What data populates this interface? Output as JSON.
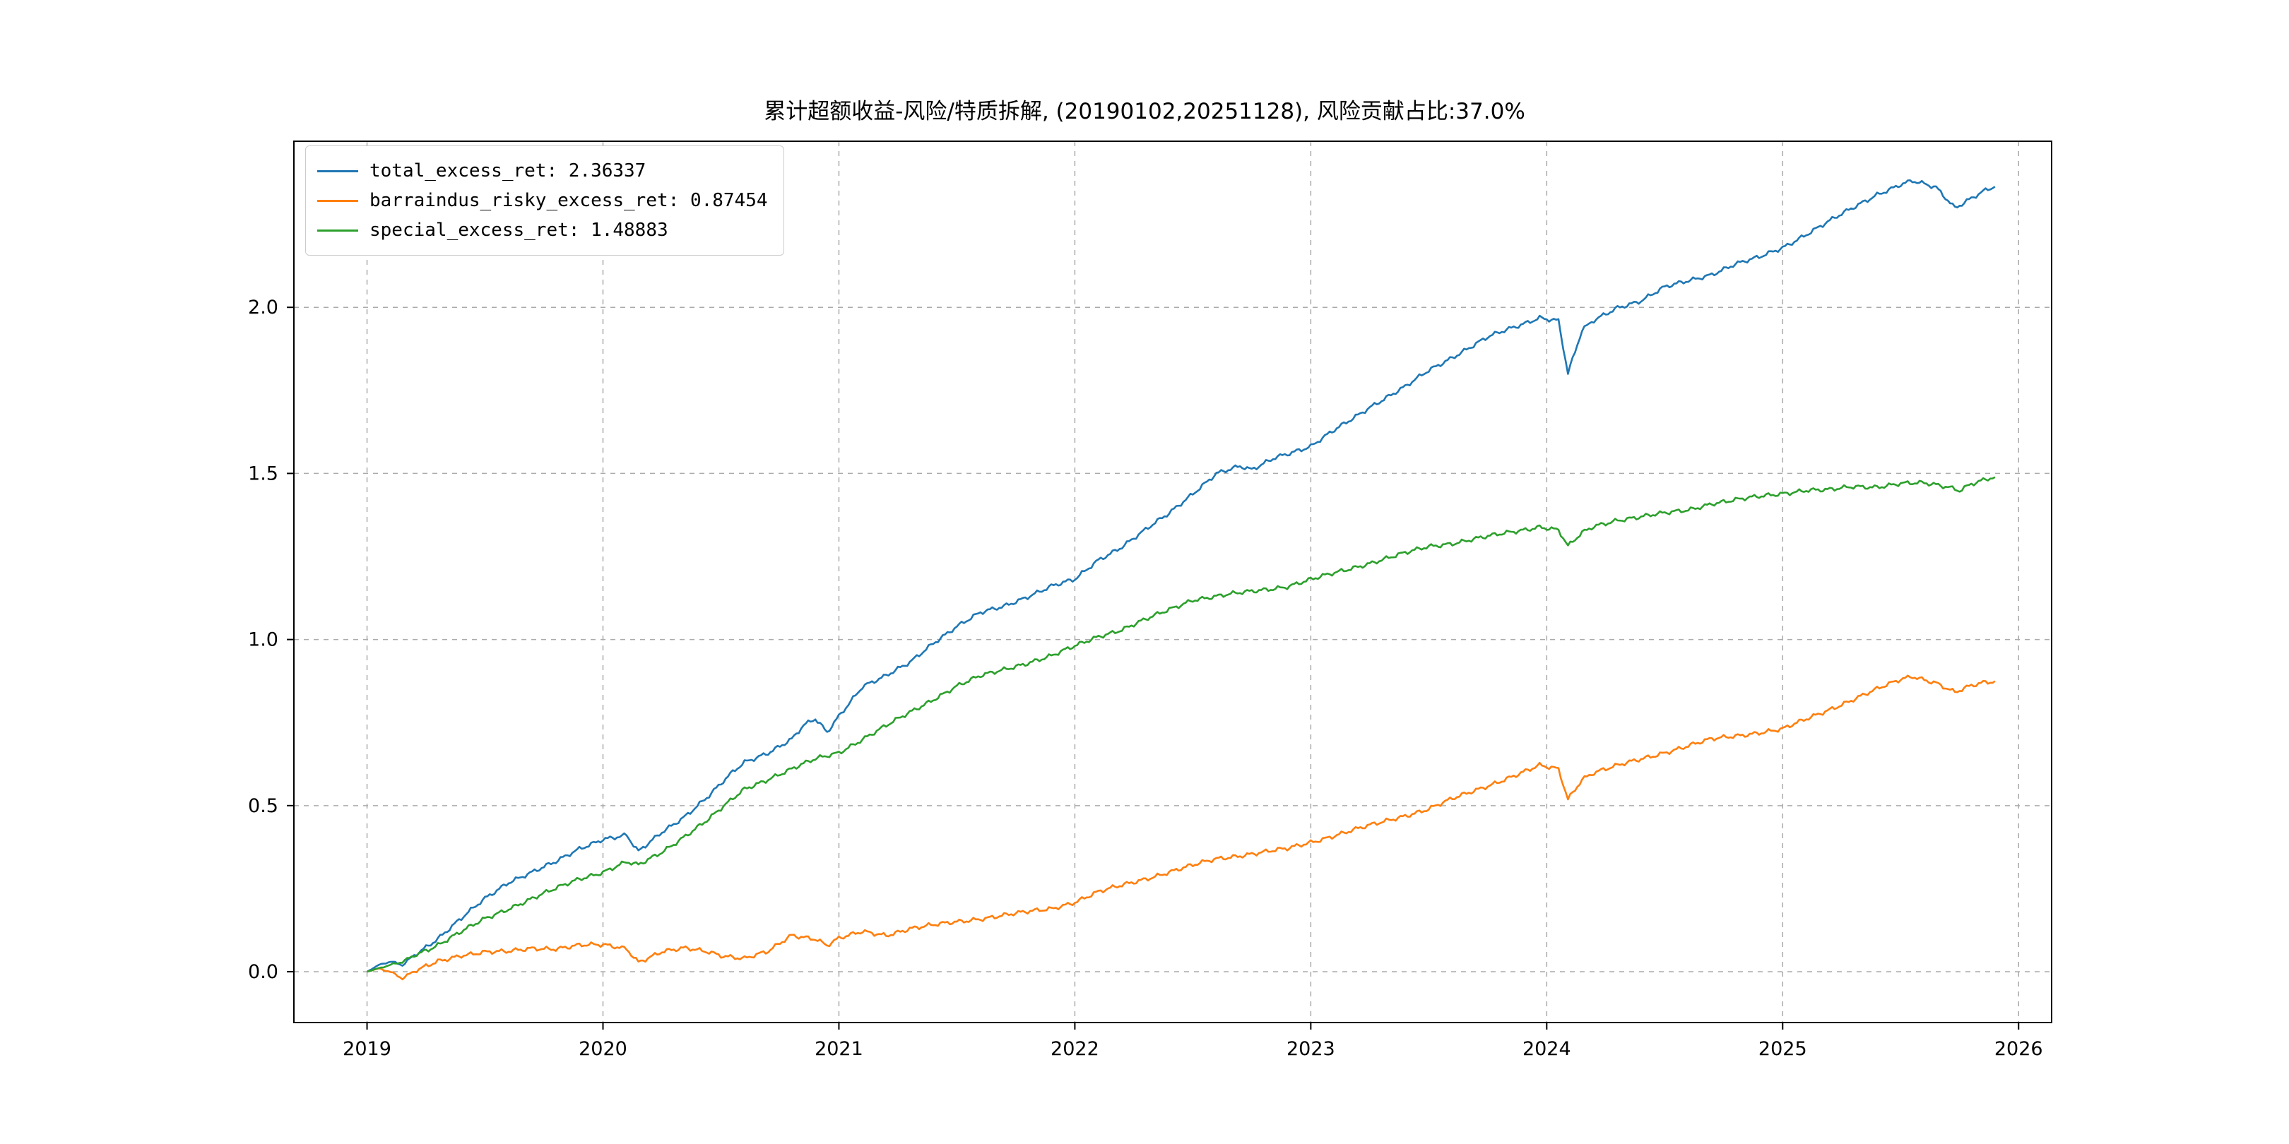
{
  "title": "累计超额收益-风险/特质拆解, (20190102,20251128), 风险贡献占比:37.0%",
  "risk_contribution_pct": "37.0%",
  "date_range": "20190102-20251128",
  "colors": {
    "total": "#1f77b4",
    "barraindus": "#ff7f0e",
    "special": "#2ca02c",
    "grid": "#ababab",
    "spine": "#000000"
  },
  "legend": {
    "items": [
      {
        "label": "total_excess_ret: 2.36337",
        "color": "#1f77b4"
      },
      {
        "label": "barraindus_risky_excess_ret: 0.87454",
        "color": "#ff7f0e"
      },
      {
        "label": "special_excess_ret: 1.48883",
        "color": "#2ca02c"
      }
    ]
  },
  "chart_data": {
    "type": "line",
    "title": "累计超额收益-风险/特质拆解, (20190102,20251128), 风险贡献占比:37.0%",
    "xlabel": "",
    "ylabel": "",
    "grid": true,
    "grid_style": "dashed",
    "legend_position": "upper-left",
    "x_ticks": [
      2019,
      2020,
      2021,
      2022,
      2023,
      2024,
      2025,
      2026
    ],
    "y_ticks": [
      0.0,
      0.5,
      1.0,
      1.5,
      2.0
    ],
    "y_tick_labels": [
      "0.0",
      "0.5",
      "1.0",
      "1.5",
      "2.0"
    ],
    "xlim": [
      2018.69,
      2026.14
    ],
    "ylim": [
      -0.153,
      2.5
    ],
    "series": [
      {
        "name": "total_excess_ret",
        "final_value": 2.36337,
        "color": "#1f77b4",
        "points": [
          [
            2019.0,
            0.0
          ],
          [
            2019.05,
            0.02
          ],
          [
            2019.1,
            0.03
          ],
          [
            2019.15,
            0.02
          ],
          [
            2019.2,
            0.05
          ],
          [
            2019.3,
            0.1
          ],
          [
            2019.4,
            0.16
          ],
          [
            2019.5,
            0.22
          ],
          [
            2019.6,
            0.27
          ],
          [
            2019.7,
            0.3
          ],
          [
            2019.8,
            0.33
          ],
          [
            2019.9,
            0.37
          ],
          [
            2020.0,
            0.4
          ],
          [
            2020.1,
            0.41
          ],
          [
            2020.15,
            0.36
          ],
          [
            2020.25,
            0.42
          ],
          [
            2020.35,
            0.47
          ],
          [
            2020.45,
            0.53
          ],
          [
            2020.55,
            0.6
          ],
          [
            2020.6,
            0.63
          ],
          [
            2020.7,
            0.66
          ],
          [
            2020.8,
            0.7
          ],
          [
            2020.85,
            0.74
          ],
          [
            2020.9,
            0.76
          ],
          [
            2020.95,
            0.72
          ],
          [
            2021.0,
            0.77
          ],
          [
            2021.1,
            0.86
          ],
          [
            2021.2,
            0.89
          ],
          [
            2021.3,
            0.93
          ],
          [
            2021.4,
            0.99
          ],
          [
            2021.5,
            1.04
          ],
          [
            2021.6,
            1.08
          ],
          [
            2021.7,
            1.1
          ],
          [
            2021.8,
            1.13
          ],
          [
            2021.9,
            1.16
          ],
          [
            2022.0,
            1.18
          ],
          [
            2022.1,
            1.24
          ],
          [
            2022.2,
            1.28
          ],
          [
            2022.3,
            1.33
          ],
          [
            2022.4,
            1.38
          ],
          [
            2022.5,
            1.44
          ],
          [
            2022.6,
            1.5
          ],
          [
            2022.7,
            1.52
          ],
          [
            2022.75,
            1.51
          ],
          [
            2022.85,
            1.55
          ],
          [
            2023.0,
            1.58
          ],
          [
            2023.1,
            1.63
          ],
          [
            2023.25,
            1.7
          ],
          [
            2023.4,
            1.76
          ],
          [
            2023.5,
            1.81
          ],
          [
            2023.6,
            1.85
          ],
          [
            2023.75,
            1.91
          ],
          [
            2023.9,
            1.95
          ],
          [
            2023.97,
            1.97
          ],
          [
            2024.05,
            1.96
          ],
          [
            2024.09,
            1.8
          ],
          [
            2024.15,
            1.93
          ],
          [
            2024.2,
            1.96
          ],
          [
            2024.3,
            2.0
          ],
          [
            2024.4,
            2.02
          ],
          [
            2024.5,
            2.06
          ],
          [
            2024.6,
            2.08
          ],
          [
            2024.7,
            2.1
          ],
          [
            2024.8,
            2.13
          ],
          [
            2024.9,
            2.15
          ],
          [
            2025.0,
            2.18
          ],
          [
            2025.1,
            2.22
          ],
          [
            2025.2,
            2.26
          ],
          [
            2025.3,
            2.3
          ],
          [
            2025.4,
            2.34
          ],
          [
            2025.5,
            2.37
          ],
          [
            2025.55,
            2.38
          ],
          [
            2025.65,
            2.36
          ],
          [
            2025.73,
            2.3
          ],
          [
            2025.8,
            2.33
          ],
          [
            2025.85,
            2.35
          ],
          [
            2025.9,
            2.36337
          ]
        ]
      },
      {
        "name": "barraindus_risky_excess_ret",
        "final_value": 0.87454,
        "color": "#ff7f0e",
        "points": [
          [
            2019.0,
            0.0
          ],
          [
            2019.05,
            0.01
          ],
          [
            2019.1,
            0.0
          ],
          [
            2019.15,
            -0.02
          ],
          [
            2019.2,
            0.0
          ],
          [
            2019.3,
            0.03
          ],
          [
            2019.4,
            0.05
          ],
          [
            2019.5,
            0.06
          ],
          [
            2019.6,
            0.06
          ],
          [
            2019.7,
            0.07
          ],
          [
            2019.8,
            0.07
          ],
          [
            2019.9,
            0.08
          ],
          [
            2020.0,
            0.08
          ],
          [
            2020.1,
            0.07
          ],
          [
            2020.15,
            0.03
          ],
          [
            2020.25,
            0.06
          ],
          [
            2020.35,
            0.07
          ],
          [
            2020.45,
            0.06
          ],
          [
            2020.5,
            0.05
          ],
          [
            2020.6,
            0.04
          ],
          [
            2020.7,
            0.06
          ],
          [
            2020.8,
            0.11
          ],
          [
            2020.9,
            0.1
          ],
          [
            2020.95,
            0.08
          ],
          [
            2021.0,
            0.1
          ],
          [
            2021.1,
            0.12
          ],
          [
            2021.2,
            0.11
          ],
          [
            2021.3,
            0.13
          ],
          [
            2021.4,
            0.14
          ],
          [
            2021.5,
            0.15
          ],
          [
            2021.6,
            0.16
          ],
          [
            2021.7,
            0.17
          ],
          [
            2021.8,
            0.18
          ],
          [
            2021.9,
            0.19
          ],
          [
            2022.0,
            0.21
          ],
          [
            2022.1,
            0.24
          ],
          [
            2022.2,
            0.26
          ],
          [
            2022.3,
            0.28
          ],
          [
            2022.4,
            0.3
          ],
          [
            2022.5,
            0.32
          ],
          [
            2022.6,
            0.34
          ],
          [
            2022.7,
            0.35
          ],
          [
            2022.8,
            0.36
          ],
          [
            2022.9,
            0.37
          ],
          [
            2023.0,
            0.39
          ],
          [
            2023.1,
            0.41
          ],
          [
            2023.25,
            0.44
          ],
          [
            2023.4,
            0.47
          ],
          [
            2023.5,
            0.49
          ],
          [
            2023.6,
            0.52
          ],
          [
            2023.75,
            0.56
          ],
          [
            2023.9,
            0.6
          ],
          [
            2023.97,
            0.62
          ],
          [
            2024.05,
            0.61
          ],
          [
            2024.09,
            0.52
          ],
          [
            2024.15,
            0.58
          ],
          [
            2024.2,
            0.6
          ],
          [
            2024.3,
            0.62
          ],
          [
            2024.4,
            0.64
          ],
          [
            2024.5,
            0.66
          ],
          [
            2024.6,
            0.68
          ],
          [
            2024.7,
            0.7
          ],
          [
            2024.8,
            0.71
          ],
          [
            2024.9,
            0.72
          ],
          [
            2025.0,
            0.73
          ],
          [
            2025.1,
            0.76
          ],
          [
            2025.2,
            0.79
          ],
          [
            2025.3,
            0.82
          ],
          [
            2025.4,
            0.85
          ],
          [
            2025.5,
            0.88
          ],
          [
            2025.55,
            0.89
          ],
          [
            2025.65,
            0.87
          ],
          [
            2025.73,
            0.84
          ],
          [
            2025.8,
            0.86
          ],
          [
            2025.85,
            0.87
          ],
          [
            2025.9,
            0.87454
          ]
        ]
      },
      {
        "name": "special_excess_ret",
        "final_value": 1.48883,
        "color": "#2ca02c",
        "points": [
          [
            2019.0,
            0.0
          ],
          [
            2019.05,
            0.01
          ],
          [
            2019.1,
            0.02
          ],
          [
            2019.15,
            0.03
          ],
          [
            2019.2,
            0.05
          ],
          [
            2019.3,
            0.08
          ],
          [
            2019.4,
            0.12
          ],
          [
            2019.5,
            0.16
          ],
          [
            2019.6,
            0.19
          ],
          [
            2019.7,
            0.22
          ],
          [
            2019.8,
            0.25
          ],
          [
            2019.9,
            0.28
          ],
          [
            2020.0,
            0.3
          ],
          [
            2020.1,
            0.33
          ],
          [
            2020.15,
            0.32
          ],
          [
            2020.25,
            0.36
          ],
          [
            2020.35,
            0.41
          ],
          [
            2020.45,
            0.46
          ],
          [
            2020.55,
            0.52
          ],
          [
            2020.6,
            0.55
          ],
          [
            2020.7,
            0.58
          ],
          [
            2020.8,
            0.61
          ],
          [
            2020.9,
            0.64
          ],
          [
            2021.0,
            0.66
          ],
          [
            2021.1,
            0.7
          ],
          [
            2021.2,
            0.74
          ],
          [
            2021.3,
            0.78
          ],
          [
            2021.4,
            0.82
          ],
          [
            2021.5,
            0.86
          ],
          [
            2021.6,
            0.89
          ],
          [
            2021.7,
            0.91
          ],
          [
            2021.8,
            0.93
          ],
          [
            2021.9,
            0.95
          ],
          [
            2022.0,
            0.98
          ],
          [
            2022.1,
            1.01
          ],
          [
            2022.2,
            1.03
          ],
          [
            2022.3,
            1.06
          ],
          [
            2022.4,
            1.09
          ],
          [
            2022.5,
            1.12
          ],
          [
            2022.6,
            1.13
          ],
          [
            2022.7,
            1.14
          ],
          [
            2022.8,
            1.15
          ],
          [
            2022.9,
            1.16
          ],
          [
            2023.0,
            1.18
          ],
          [
            2023.1,
            1.2
          ],
          [
            2023.25,
            1.23
          ],
          [
            2023.4,
            1.26
          ],
          [
            2023.5,
            1.28
          ],
          [
            2023.6,
            1.29
          ],
          [
            2023.75,
            1.31
          ],
          [
            2023.9,
            1.33
          ],
          [
            2023.97,
            1.34
          ],
          [
            2024.05,
            1.33
          ],
          [
            2024.09,
            1.28
          ],
          [
            2024.15,
            1.32
          ],
          [
            2024.2,
            1.34
          ],
          [
            2024.3,
            1.36
          ],
          [
            2024.4,
            1.37
          ],
          [
            2024.5,
            1.38
          ],
          [
            2024.6,
            1.39
          ],
          [
            2024.7,
            1.41
          ],
          [
            2024.8,
            1.42
          ],
          [
            2024.9,
            1.43
          ],
          [
            2025.0,
            1.44
          ],
          [
            2025.1,
            1.45
          ],
          [
            2025.2,
            1.45
          ],
          [
            2025.3,
            1.46
          ],
          [
            2025.4,
            1.46
          ],
          [
            2025.5,
            1.47
          ],
          [
            2025.6,
            1.47
          ],
          [
            2025.7,
            1.46
          ],
          [
            2025.75,
            1.45
          ],
          [
            2025.8,
            1.47
          ],
          [
            2025.85,
            1.48
          ],
          [
            2025.9,
            1.48883
          ]
        ]
      }
    ]
  }
}
